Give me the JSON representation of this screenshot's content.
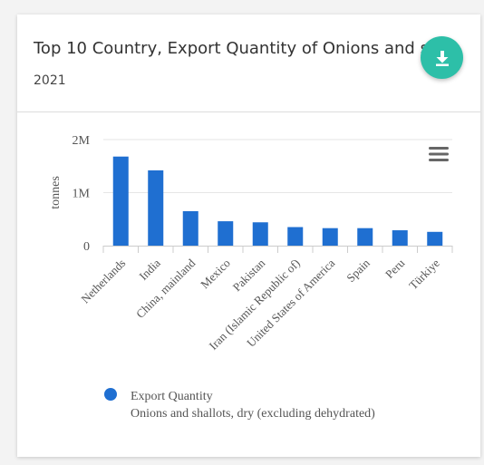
{
  "card": {
    "title": "Top 10 Country, Export Quantity of Onions and s...",
    "subtitle": "2021",
    "download_icon": "download-icon",
    "accent_color": "#2dbfa8"
  },
  "chart_menu_icon": "hamburger-menu-icon",
  "chart_data": {
    "type": "bar",
    "title": "",
    "ylabel": "tonnes",
    "xlabel": "",
    "ylim": [
      0,
      2000000
    ],
    "yticks": [
      {
        "value": 0,
        "label": "0"
      },
      {
        "value": 1000000,
        "label": "1M"
      },
      {
        "value": 2000000,
        "label": "2M"
      }
    ],
    "categories": [
      "Netherlands",
      "India",
      "China, mainland",
      "Mexico",
      "Pakistan",
      "Iran (Islamic Republic of)",
      "United States of America",
      "Spain",
      "Peru",
      "Türkiye"
    ],
    "series": [
      {
        "name": "Export Quantity",
        "color": "#1f6fd1",
        "values": [
          1680000,
          1420000,
          650000,
          460000,
          440000,
          350000,
          330000,
          330000,
          290000,
          260000
        ]
      }
    ],
    "legend": {
      "position": "bottom-left",
      "label": "Export Quantity",
      "sublabel": "Onions and shallots, dry (excluding dehydrated)"
    },
    "grid": true
  }
}
